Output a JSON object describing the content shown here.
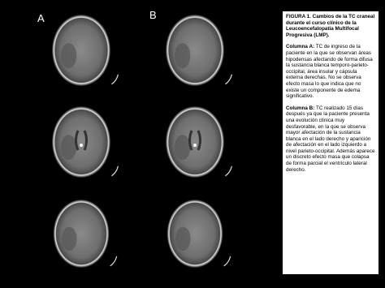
{
  "figure": {
    "panel_labels": [
      "A",
      "B"
    ],
    "caption": {
      "title": "FIGURA 1. Cambios de la TC craneal durante el curso clínico de la Leucoencefalopatía Multifocal Progresiva (LMP).",
      "sections": [
        {
          "label": "Columna A:",
          "text": "TC de ingreso de la paciente en la que se observan áreas hipodensas afectando de forma difusa la sustancia blanca temporo-parieto-occipital, área insular y cápsula externa derechas. No se observa efecto masa lo que indica que no existe un componente de edema significativo."
        },
        {
          "label": "Columna B:",
          "text": "TC realizado 15 días después ya que la paciente presenta una evolución clínica muy desfavorable, en la que se observa mayor afectación de la sustancia blanca en el lado derecho y aparición de afectación en el lado izquierdo a nivel parieto-occipital. Además aparece un discreto efecto masa que colapsa de forma parcial el ventrículo lateral derecho."
        }
      ]
    }
  }
}
